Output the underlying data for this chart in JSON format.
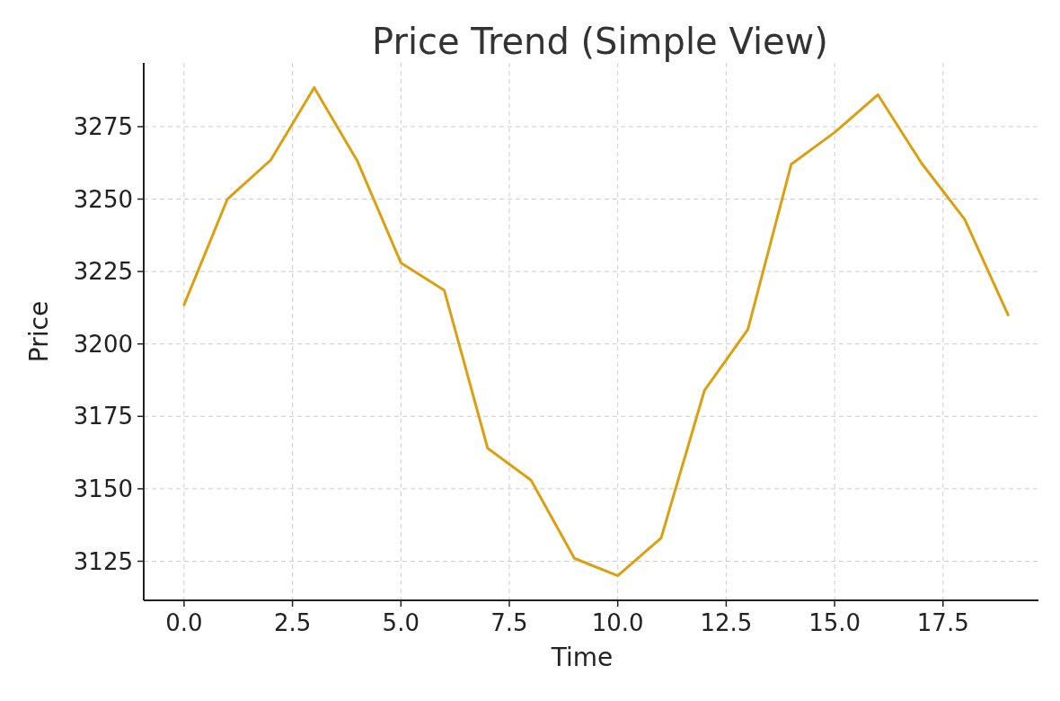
{
  "chart_data": {
    "type": "line",
    "title": "Price Trend (Simple View)",
    "xlabel": "Time",
    "ylabel": "Price",
    "x": [
      0,
      1,
      2,
      3,
      4,
      5,
      6,
      7,
      8,
      9,
      10,
      11,
      12,
      13,
      14,
      15,
      16,
      17,
      18,
      19
    ],
    "series": [
      {
        "color": "#dba010",
        "values": [
          3213.5,
          3250,
          3263.5,
          3288.5,
          3263,
          3228,
          3218.5,
          3164,
          3153,
          3126,
          3120,
          3133,
          3184,
          3205,
          3262,
          3273,
          3286,
          3262.5,
          3243,
          3210
        ]
      }
    ],
    "xlim": [
      -0.93,
      19.7
    ],
    "ylim": [
      3111.5,
      3297
    ],
    "xticks": [
      {
        "value": 0,
        "label": "0.0"
      },
      {
        "value": 2.5,
        "label": "2.5"
      },
      {
        "value": 5,
        "label": "5.0"
      },
      {
        "value": 7.5,
        "label": "7.5"
      },
      {
        "value": 10,
        "label": "10.0"
      },
      {
        "value": 12.5,
        "label": "12.5"
      },
      {
        "value": 15,
        "label": "15.0"
      },
      {
        "value": 17.5,
        "label": "17.5"
      }
    ],
    "yticks": [
      3125,
      3150,
      3175,
      3200,
      3225,
      3250,
      3275
    ],
    "grid": true,
    "line_style": "solid",
    "marker": "none"
  }
}
